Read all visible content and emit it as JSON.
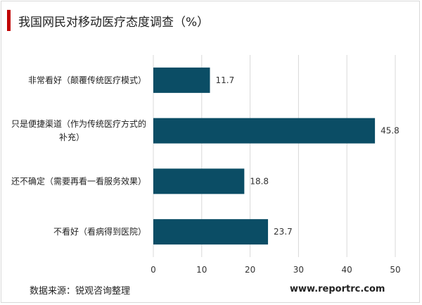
{
  "title": "我国网民对移动医疗态度调查（%）",
  "source": "数据来源：锐观咨询整理",
  "watermark": "www.reportrc.com",
  "colors": {
    "bar": "#0b4d65",
    "accent": "#c00000",
    "grid": "#d9d9d9"
  },
  "chart_data": {
    "type": "bar",
    "orientation": "horizontal",
    "title": "我国网民对移动医疗态度调查（%）",
    "categories": [
      [
        "非常看好（颠覆传统医疗模式）"
      ],
      [
        "只是便捷渠道（作为传统医疗方式的",
        "补充）"
      ],
      [
        "还不确定（需要再看一看服务效果）"
      ],
      [
        "不看好（看病得到医院）"
      ]
    ],
    "values": [
      11.7,
      45.8,
      18.8,
      23.7
    ],
    "xlim": [
      0,
      50
    ],
    "xticks": [
      "0",
      "10",
      "20",
      "30",
      "40",
      "50"
    ],
    "grid": true,
    "legend": "none"
  }
}
